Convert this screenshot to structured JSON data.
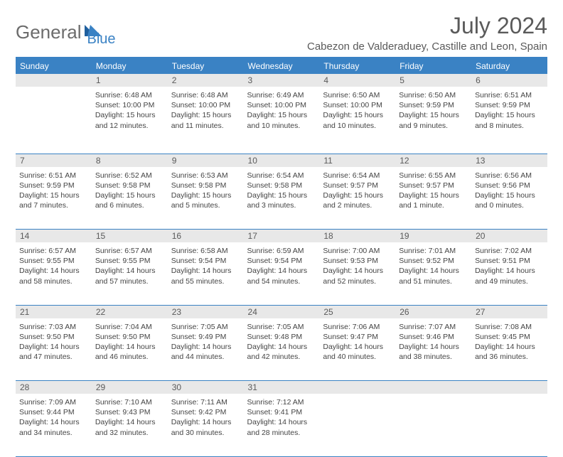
{
  "brand": {
    "part1": "General",
    "part2": "Blue"
  },
  "title": "July 2024",
  "location": "Cabezon de Valderaduey, Castille and Leon, Spain",
  "colors": {
    "accent": "#3a82c4",
    "header_text": "#5a5a5a",
    "body_text": "#444444",
    "daynum_bg": "#e8e8e8",
    "background": "#ffffff"
  },
  "day_headers": [
    "Sunday",
    "Monday",
    "Tuesday",
    "Wednesday",
    "Thursday",
    "Friday",
    "Saturday"
  ],
  "weeks": [
    [
      {
        "n": "",
        "sr": "",
        "ss": "",
        "dl": ""
      },
      {
        "n": "1",
        "sr": "Sunrise: 6:48 AM",
        "ss": "Sunset: 10:00 PM",
        "dl": "Daylight: 15 hours and 12 minutes."
      },
      {
        "n": "2",
        "sr": "Sunrise: 6:48 AM",
        "ss": "Sunset: 10:00 PM",
        "dl": "Daylight: 15 hours and 11 minutes."
      },
      {
        "n": "3",
        "sr": "Sunrise: 6:49 AM",
        "ss": "Sunset: 10:00 PM",
        "dl": "Daylight: 15 hours and 10 minutes."
      },
      {
        "n": "4",
        "sr": "Sunrise: 6:50 AM",
        "ss": "Sunset: 10:00 PM",
        "dl": "Daylight: 15 hours and 10 minutes."
      },
      {
        "n": "5",
        "sr": "Sunrise: 6:50 AM",
        "ss": "Sunset: 9:59 PM",
        "dl": "Daylight: 15 hours and 9 minutes."
      },
      {
        "n": "6",
        "sr": "Sunrise: 6:51 AM",
        "ss": "Sunset: 9:59 PM",
        "dl": "Daylight: 15 hours and 8 minutes."
      }
    ],
    [
      {
        "n": "7",
        "sr": "Sunrise: 6:51 AM",
        "ss": "Sunset: 9:59 PM",
        "dl": "Daylight: 15 hours and 7 minutes."
      },
      {
        "n": "8",
        "sr": "Sunrise: 6:52 AM",
        "ss": "Sunset: 9:58 PM",
        "dl": "Daylight: 15 hours and 6 minutes."
      },
      {
        "n": "9",
        "sr": "Sunrise: 6:53 AM",
        "ss": "Sunset: 9:58 PM",
        "dl": "Daylight: 15 hours and 5 minutes."
      },
      {
        "n": "10",
        "sr": "Sunrise: 6:54 AM",
        "ss": "Sunset: 9:58 PM",
        "dl": "Daylight: 15 hours and 3 minutes."
      },
      {
        "n": "11",
        "sr": "Sunrise: 6:54 AM",
        "ss": "Sunset: 9:57 PM",
        "dl": "Daylight: 15 hours and 2 minutes."
      },
      {
        "n": "12",
        "sr": "Sunrise: 6:55 AM",
        "ss": "Sunset: 9:57 PM",
        "dl": "Daylight: 15 hours and 1 minute."
      },
      {
        "n": "13",
        "sr": "Sunrise: 6:56 AM",
        "ss": "Sunset: 9:56 PM",
        "dl": "Daylight: 15 hours and 0 minutes."
      }
    ],
    [
      {
        "n": "14",
        "sr": "Sunrise: 6:57 AM",
        "ss": "Sunset: 9:55 PM",
        "dl": "Daylight: 14 hours and 58 minutes."
      },
      {
        "n": "15",
        "sr": "Sunrise: 6:57 AM",
        "ss": "Sunset: 9:55 PM",
        "dl": "Daylight: 14 hours and 57 minutes."
      },
      {
        "n": "16",
        "sr": "Sunrise: 6:58 AM",
        "ss": "Sunset: 9:54 PM",
        "dl": "Daylight: 14 hours and 55 minutes."
      },
      {
        "n": "17",
        "sr": "Sunrise: 6:59 AM",
        "ss": "Sunset: 9:54 PM",
        "dl": "Daylight: 14 hours and 54 minutes."
      },
      {
        "n": "18",
        "sr": "Sunrise: 7:00 AM",
        "ss": "Sunset: 9:53 PM",
        "dl": "Daylight: 14 hours and 52 minutes."
      },
      {
        "n": "19",
        "sr": "Sunrise: 7:01 AM",
        "ss": "Sunset: 9:52 PM",
        "dl": "Daylight: 14 hours and 51 minutes."
      },
      {
        "n": "20",
        "sr": "Sunrise: 7:02 AM",
        "ss": "Sunset: 9:51 PM",
        "dl": "Daylight: 14 hours and 49 minutes."
      }
    ],
    [
      {
        "n": "21",
        "sr": "Sunrise: 7:03 AM",
        "ss": "Sunset: 9:50 PM",
        "dl": "Daylight: 14 hours and 47 minutes."
      },
      {
        "n": "22",
        "sr": "Sunrise: 7:04 AM",
        "ss": "Sunset: 9:50 PM",
        "dl": "Daylight: 14 hours and 46 minutes."
      },
      {
        "n": "23",
        "sr": "Sunrise: 7:05 AM",
        "ss": "Sunset: 9:49 PM",
        "dl": "Daylight: 14 hours and 44 minutes."
      },
      {
        "n": "24",
        "sr": "Sunrise: 7:05 AM",
        "ss": "Sunset: 9:48 PM",
        "dl": "Daylight: 14 hours and 42 minutes."
      },
      {
        "n": "25",
        "sr": "Sunrise: 7:06 AM",
        "ss": "Sunset: 9:47 PM",
        "dl": "Daylight: 14 hours and 40 minutes."
      },
      {
        "n": "26",
        "sr": "Sunrise: 7:07 AM",
        "ss": "Sunset: 9:46 PM",
        "dl": "Daylight: 14 hours and 38 minutes."
      },
      {
        "n": "27",
        "sr": "Sunrise: 7:08 AM",
        "ss": "Sunset: 9:45 PM",
        "dl": "Daylight: 14 hours and 36 minutes."
      }
    ],
    [
      {
        "n": "28",
        "sr": "Sunrise: 7:09 AM",
        "ss": "Sunset: 9:44 PM",
        "dl": "Daylight: 14 hours and 34 minutes."
      },
      {
        "n": "29",
        "sr": "Sunrise: 7:10 AM",
        "ss": "Sunset: 9:43 PM",
        "dl": "Daylight: 14 hours and 32 minutes."
      },
      {
        "n": "30",
        "sr": "Sunrise: 7:11 AM",
        "ss": "Sunset: 9:42 PM",
        "dl": "Daylight: 14 hours and 30 minutes."
      },
      {
        "n": "31",
        "sr": "Sunrise: 7:12 AM",
        "ss": "Sunset: 9:41 PM",
        "dl": "Daylight: 14 hours and 28 minutes."
      },
      {
        "n": "",
        "sr": "",
        "ss": "",
        "dl": ""
      },
      {
        "n": "",
        "sr": "",
        "ss": "",
        "dl": ""
      },
      {
        "n": "",
        "sr": "",
        "ss": "",
        "dl": ""
      }
    ]
  ]
}
